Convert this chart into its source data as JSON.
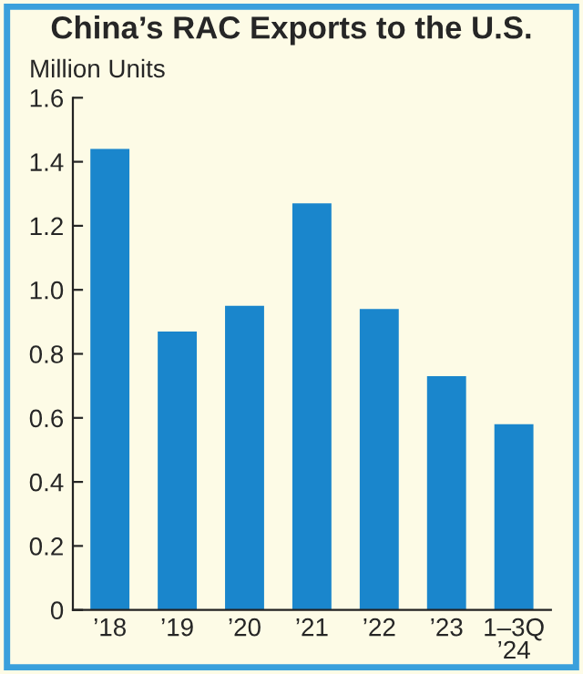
{
  "chart_data": {
    "type": "bar",
    "title": "China’s RAC Exports to the U.S.",
    "ylabel": "Million Units",
    "categories": [
      "’18",
      "’19",
      "’20",
      "’21",
      "’22",
      "’23",
      "1–3Q\n’24"
    ],
    "values": [
      1.44,
      0.87,
      0.95,
      1.27,
      0.94,
      0.73,
      0.58
    ],
    "color": "#1a86cc",
    "ylim": [
      0,
      1.6
    ],
    "yticks": [
      {
        "value": 0,
        "label": "0"
      },
      0.2,
      0.4,
      0.6,
      0.8,
      {
        "value": 1,
        "label": "1.0"
      },
      1.2,
      1.4,
      1.6
    ],
    "grid": false
  }
}
